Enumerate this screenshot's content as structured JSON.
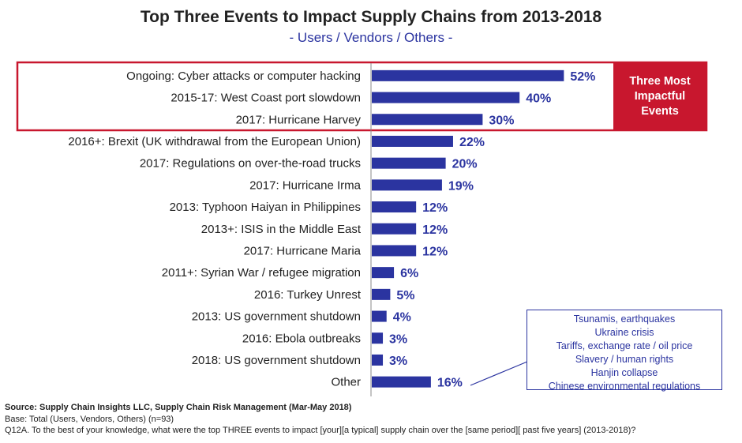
{
  "title": "Top Three Events to Impact Supply Chains from 2013-2018",
  "subtitle": "- Users / Vendors / Others -",
  "chart_data": {
    "type": "bar",
    "orientation": "horizontal",
    "categories": [
      "Ongoing: Cyber attacks or computer hacking",
      "2015-17: West Coast port slowdown",
      "2017: Hurricane Harvey",
      "2016+: Brexit (UK withdrawal from the European Union)",
      "2017: Regulations on over-the-road trucks",
      "2017: Hurricane Irma",
      "2013: Typhoon Haiyan in Philippines",
      "2013+: ISIS in the Middle East",
      "2017: Hurricane Maria",
      "2011+: Syrian War / refugee migration",
      "2016: Turkey Unrest",
      "2013: US government shutdown",
      "2016: Ebola outbreaks",
      "2018: US government shutdown",
      "Other"
    ],
    "values": [
      52,
      40,
      30,
      22,
      20,
      19,
      12,
      12,
      12,
      6,
      5,
      4,
      3,
      3,
      16
    ],
    "value_labels": [
      "52%",
      "40%",
      "30%",
      "22%",
      "20%",
      "19%",
      "12%",
      "12%",
      "12%",
      "6%",
      "5%",
      "4%",
      "3%",
      "3%",
      "16%"
    ],
    "bar_color": "#2b34a0",
    "highlight_color": "#c8172e",
    "highlight_count": 3
  },
  "callout": {
    "line1": "Three Most",
    "line2": "Impactful",
    "line3": "Events"
  },
  "other_items": [
    "Tsunamis, earthquakes",
    "Ukraine crisis",
    "Tariffs, exchange rate / oil price",
    "Slavery / human rights",
    "Hanjin collapse",
    "Chinese environmental regulations"
  ],
  "footer": {
    "source": "Source:  Supply Chain Insights LLC, Supply Chain Risk Management (Mar-May 2018)",
    "base": "Base: Total (Users, Vendors, Others) (n=93)",
    "question": "Q12A. To the best of your knowledge, what were the top THREE events to impact [your][a typical] supply chain over the [same period][ past five years] (2013-2018)?"
  }
}
